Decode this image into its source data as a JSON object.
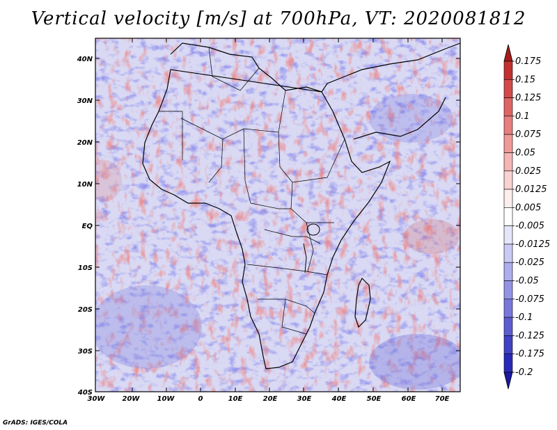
{
  "title": "Vertical velocity [m/s] at 700hPa, VT: 2020081812",
  "credit": "GrADS: IGES/COLA",
  "lat_labels": [
    "40N",
    "30N",
    "20N",
    "10N",
    "EQ",
    "10S",
    "20S",
    "30S",
    "40S"
  ],
  "lon_labels": [
    "30W",
    "20W",
    "10W",
    "0",
    "10E",
    "20E",
    "30E",
    "40E",
    "50E",
    "60E",
    "70E"
  ],
  "colorbar": {
    "labels": [
      "0.175",
      "0.15",
      "0.125",
      "0.1",
      "0.075",
      "0.05",
      "0.025",
      "0.0125",
      "0.005",
      "-0.005",
      "-0.0125",
      "-0.025",
      "-0.05",
      "-0.075",
      "-0.1",
      "-0.125",
      "-0.175",
      "-0.2"
    ],
    "colors": [
      "#a51c1c",
      "#c23030",
      "#d44a4a",
      "#e06464",
      "#e87e7e",
      "#ef9999",
      "#f4b5b5",
      "#f9d2d2",
      "#fdeeee",
      "#ffffff",
      "#e6e6fb",
      "#cacaf4",
      "#aeaeee",
      "#9393e6",
      "#7878dc",
      "#5d5dd2",
      "#4242c6",
      "#2a2ab8",
      "#1a1aa3"
    ]
  }
}
